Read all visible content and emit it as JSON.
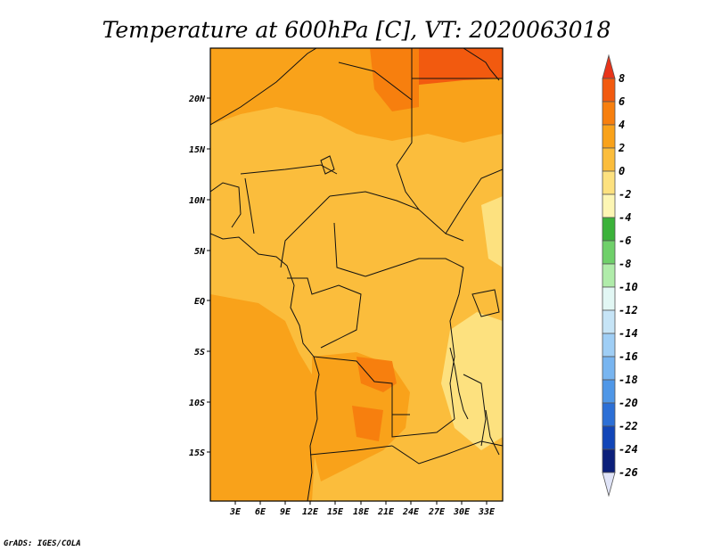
{
  "title": "Temperature at 600hPa [C], VT: 2020063018",
  "credit": "GrADS: IGES/COLA",
  "lat_labels": [
    "20N",
    "15N",
    "10N",
    "5N",
    "EQ",
    "5S",
    "10S",
    "15S"
  ],
  "lon_labels": [
    "3E",
    "6E",
    "9E",
    "12E",
    "15E",
    "18E",
    "21E",
    "24E",
    "27E",
    "30E",
    "33E"
  ],
  "colorbar": {
    "labels": [
      "8",
      "6",
      "4",
      "2",
      "0",
      "-2",
      "-4",
      "-6",
      "-8",
      "-10",
      "-12",
      "-14",
      "-16",
      "-18",
      "-20",
      "-22",
      "-24",
      "-26"
    ],
    "colors": [
      "#e8341a",
      "#f25a0f",
      "#f77f0e",
      "#f9a21a",
      "#fbbd3c",
      "#fde17f",
      "#fdf6b4",
      "#3bb23a",
      "#6fd06a",
      "#b0ecaa",
      "#e2f7f4",
      "#c6e4f6",
      "#9fcef5",
      "#78b5f0",
      "#4f97e7",
      "#2c6fd6",
      "#1145b8",
      "#0b1f7a",
      "#e0e4f8"
    ]
  }
}
